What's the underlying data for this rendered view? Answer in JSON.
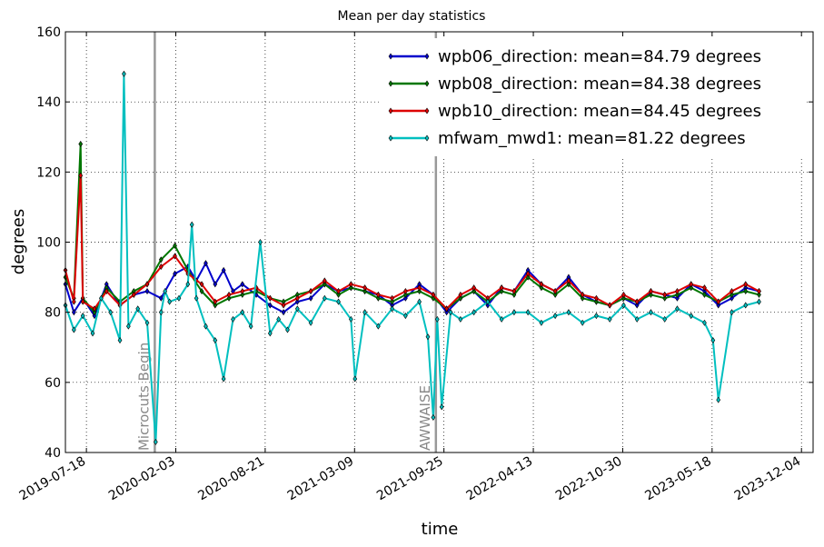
{
  "chart_data": {
    "type": "line",
    "title": "Mean per day statistics",
    "xlabel": "time",
    "ylabel": "degrees",
    "ylim": [
      40,
      160
    ],
    "yticks": [
      40,
      60,
      80,
      100,
      120,
      140,
      160
    ],
    "xlim": [
      "2019-06-01",
      "2023-12-30"
    ],
    "xticks": [
      "2019-07-18",
      "2020-02-03",
      "2020-08-21",
      "2021-03-09",
      "2021-09-25",
      "2022-04-13",
      "2022-10-30",
      "2023-05-18",
      "2023-12-04"
    ],
    "grid": true,
    "legend_position": "top-right",
    "vertical_markers": [
      {
        "date": "2019-12-18",
        "label": "Microcuts Begin"
      },
      {
        "date": "2021-09-07",
        "label": "AWWAISE"
      }
    ],
    "series": [
      {
        "name": "wpb06_direction: mean=84.79 degrees",
        "color": "#0000cc",
        "x": [
          "2019-06-01",
          "2019-06-20",
          "2019-07-10",
          "2019-08-05",
          "2019-09-01",
          "2019-10-01",
          "2019-11-01",
          "2019-12-01",
          "2020-01-01",
          "2020-02-01",
          "2020-03-01",
          "2020-03-20",
          "2020-04-10",
          "2020-05-01",
          "2020-05-20",
          "2020-06-10",
          "2020-07-01",
          "2020-08-01",
          "2020-09-01",
          "2020-10-01",
          "2020-11-01",
          "2020-12-01",
          "2021-01-01",
          "2021-02-01",
          "2021-03-01",
          "2021-04-01",
          "2021-05-01",
          "2021-06-01",
          "2021-07-01",
          "2021-08-01",
          "2021-09-01",
          "2021-10-01",
          "2021-11-01",
          "2021-12-01",
          "2022-01-01",
          "2022-02-01",
          "2022-03-01",
          "2022-04-01",
          "2022-05-01",
          "2022-06-01",
          "2022-07-01",
          "2022-08-01",
          "2022-09-01",
          "2022-10-01",
          "2022-11-01",
          "2022-12-01",
          "2023-01-01",
          "2023-02-01",
          "2023-03-01",
          "2023-04-01",
          "2023-05-01",
          "2023-06-01",
          "2023-07-01",
          "2023-08-01",
          "2023-08-31"
        ],
        "y": [
          88,
          80,
          84,
          79,
          88,
          82,
          85,
          86,
          84,
          91,
          93,
          89,
          94,
          88,
          92,
          86,
          88,
          85,
          82,
          80,
          83,
          84,
          88,
          86,
          87,
          86,
          85,
          82,
          84,
          88,
          85,
          80,
          84,
          86,
          82,
          87,
          86,
          92,
          88,
          86,
          90,
          85,
          83,
          82,
          84,
          82,
          86,
          85,
          84,
          88,
          86,
          82,
          84,
          87,
          86
        ]
      },
      {
        "name": "wpb08_direction: mean=84.38 degrees",
        "color": "#007700",
        "x": [
          "2019-06-01",
          "2019-06-20",
          "2019-07-05",
          "2019-07-10",
          "2019-08-05",
          "2019-09-01",
          "2019-10-01",
          "2019-11-01",
          "2019-12-01",
          "2020-01-01",
          "2020-02-01",
          "2020-03-01",
          "2020-04-01",
          "2020-05-01",
          "2020-06-01",
          "2020-07-01",
          "2020-08-01",
          "2020-09-01",
          "2020-10-01",
          "2020-11-01",
          "2020-12-01",
          "2021-01-01",
          "2021-02-01",
          "2021-03-01",
          "2021-04-01",
          "2021-05-01",
          "2021-06-01",
          "2021-07-01",
          "2021-08-01",
          "2021-09-01",
          "2021-10-01",
          "2021-11-01",
          "2021-12-01",
          "2022-01-01",
          "2022-02-01",
          "2022-03-01",
          "2022-04-01",
          "2022-05-01",
          "2022-06-01",
          "2022-07-01",
          "2022-08-01",
          "2022-09-01",
          "2022-10-01",
          "2022-11-01",
          "2022-12-01",
          "2023-01-01",
          "2023-02-01",
          "2023-03-01",
          "2023-04-01",
          "2023-05-01",
          "2023-06-01",
          "2023-07-01",
          "2023-08-01",
          "2023-08-31"
        ],
        "y": [
          90,
          84,
          128,
          84,
          80,
          87,
          83,
          86,
          88,
          95,
          99,
          92,
          86,
          82,
          84,
          85,
          86,
          84,
          83,
          85,
          86,
          88,
          85,
          87,
          86,
          84,
          83,
          85,
          86,
          84,
          81,
          84,
          86,
          83,
          86,
          85,
          90,
          87,
          85,
          88,
          84,
          83,
          82,
          84,
          83,
          85,
          84,
          85,
          87,
          85,
          83,
          85,
          86,
          85
        ]
      },
      {
        "name": "wpb10_direction: mean=84.45 degrees",
        "color": "#dd0000",
        "x": [
          "2019-06-01",
          "2019-06-20",
          "2019-07-05",
          "2019-07-10",
          "2019-08-05",
          "2019-09-01",
          "2019-10-01",
          "2019-11-01",
          "2019-12-01",
          "2020-01-01",
          "2020-02-01",
          "2020-03-01",
          "2020-04-01",
          "2020-05-01",
          "2020-06-01",
          "2020-07-01",
          "2020-08-01",
          "2020-09-01",
          "2020-10-01",
          "2020-11-01",
          "2020-12-01",
          "2021-01-01",
          "2021-02-01",
          "2021-03-01",
          "2021-04-01",
          "2021-05-01",
          "2021-06-01",
          "2021-07-01",
          "2021-08-01",
          "2021-09-01",
          "2021-10-01",
          "2021-11-01",
          "2021-12-01",
          "2022-01-01",
          "2022-02-01",
          "2022-03-01",
          "2022-04-01",
          "2022-05-01",
          "2022-06-01",
          "2022-07-01",
          "2022-08-01",
          "2022-09-01",
          "2022-10-01",
          "2022-11-01",
          "2022-12-01",
          "2023-01-01",
          "2023-02-01",
          "2023-03-01",
          "2023-04-01",
          "2023-05-01",
          "2023-06-01",
          "2023-07-01",
          "2023-08-01",
          "2023-08-31"
        ],
        "y": [
          92,
          83,
          119,
          83,
          81,
          86,
          82,
          85,
          88,
          93,
          96,
          91,
          88,
          83,
          85,
          86,
          87,
          84,
          82,
          84,
          86,
          89,
          86,
          88,
          87,
          85,
          84,
          86,
          87,
          85,
          81,
          85,
          87,
          84,
          87,
          86,
          91,
          88,
          86,
          89,
          85,
          84,
          82,
          85,
          83,
          86,
          85,
          86,
          88,
          87,
          83,
          86,
          88,
          86
        ]
      },
      {
        "name": "mfwam_mwd1: mean=81.22 degrees",
        "color": "#00bfbf",
        "x": [
          "2019-06-01",
          "2019-06-20",
          "2019-07-10",
          "2019-08-01",
          "2019-08-20",
          "2019-09-10",
          "2019-10-01",
          "2019-10-10",
          "2019-10-20",
          "2019-11-10",
          "2019-12-01",
          "2019-12-20",
          "2020-01-01",
          "2020-01-10",
          "2020-01-20",
          "2020-02-10",
          "2020-03-01",
          "2020-03-10",
          "2020-03-20",
          "2020-04-10",
          "2020-05-01",
          "2020-05-20",
          "2020-06-10",
          "2020-07-01",
          "2020-07-20",
          "2020-08-10",
          "2020-09-01",
          "2020-09-20",
          "2020-10-10",
          "2020-11-01",
          "2020-12-01",
          "2021-01-01",
          "2021-02-01",
          "2021-03-01",
          "2021-03-10",
          "2021-04-01",
          "2021-05-01",
          "2021-06-01",
          "2021-07-01",
          "2021-08-01",
          "2021-08-20",
          "2021-09-01",
          "2021-09-10",
          "2021-09-20",
          "2021-10-10",
          "2021-11-01",
          "2021-12-01",
          "2022-01-01",
          "2022-02-01",
          "2022-03-01",
          "2022-04-01",
          "2022-05-01",
          "2022-06-01",
          "2022-07-01",
          "2022-08-01",
          "2022-09-01",
          "2022-10-01",
          "2022-11-01",
          "2022-12-01",
          "2023-01-01",
          "2023-02-01",
          "2023-03-01",
          "2023-04-01",
          "2023-05-01",
          "2023-05-20",
          "2023-06-01",
          "2023-07-01",
          "2023-08-01",
          "2023-08-31"
        ],
        "y": [
          82,
          75,
          79,
          74,
          84,
          80,
          72,
          148,
          76,
          81,
          77,
          43,
          80,
          86,
          83,
          84,
          88,
          105,
          84,
          76,
          72,
          61,
          78,
          80,
          76,
          100,
          74,
          78,
          75,
          81,
          77,
          84,
          83,
          78,
          61,
          80,
          76,
          81,
          79,
          83,
          73,
          50,
          78,
          53,
          80,
          78,
          80,
          83,
          78,
          80,
          80,
          77,
          79,
          80,
          77,
          79,
          78,
          82,
          78,
          80,
          78,
          81,
          79,
          77,
          72,
          55,
          80,
          82,
          83
        ]
      }
    ]
  }
}
